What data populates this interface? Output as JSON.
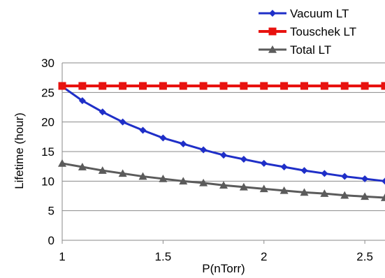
{
  "chart_data": {
    "type": "line",
    "title": "",
    "xlabel": "P(nTorr)",
    "ylabel": "Lifetime (hour)",
    "xlim": [
      1,
      2.6
    ],
    "ylim": [
      0,
      30
    ],
    "xticks": [
      1,
      1.5,
      2,
      2.5
    ],
    "xtick_labels": [
      "1",
      "1.5",
      "2",
      "2.5"
    ],
    "yticks": [
      0,
      5,
      10,
      15,
      20,
      25,
      30
    ],
    "ytick_labels": [
      "0",
      "5",
      "10",
      "15",
      "20",
      "25",
      "30"
    ],
    "grid": "horizontal",
    "legend_position": "top-right",
    "x": [
      1.0,
      1.1,
      1.2,
      1.3,
      1.4,
      1.5,
      1.6,
      1.7,
      1.8,
      1.9,
      2.0,
      2.1,
      2.2,
      2.3,
      2.4,
      2.5,
      2.6
    ],
    "series": [
      {
        "name": "Vacuum LT",
        "color": "#1f2fc8",
        "marker": "diamond",
        "values": [
          26.0,
          23.6,
          21.7,
          20.0,
          18.6,
          17.3,
          16.3,
          15.3,
          14.4,
          13.7,
          13.0,
          12.4,
          11.8,
          11.3,
          10.8,
          10.4,
          10.0
        ]
      },
      {
        "name": "Touschek LT",
        "color": "#e8120f",
        "marker": "square",
        "values": [
          26.1,
          26.1,
          26.1,
          26.1,
          26.1,
          26.1,
          26.1,
          26.1,
          26.1,
          26.1,
          26.1,
          26.1,
          26.1,
          26.1,
          26.1,
          26.1,
          26.1
        ]
      },
      {
        "name": "Total LT",
        "color": "#5b5b5b",
        "marker": "triangle",
        "values": [
          13.0,
          12.4,
          11.8,
          11.3,
          10.8,
          10.4,
          10.0,
          9.7,
          9.3,
          9.0,
          8.7,
          8.4,
          8.1,
          7.9,
          7.6,
          7.4,
          7.2
        ]
      }
    ]
  }
}
